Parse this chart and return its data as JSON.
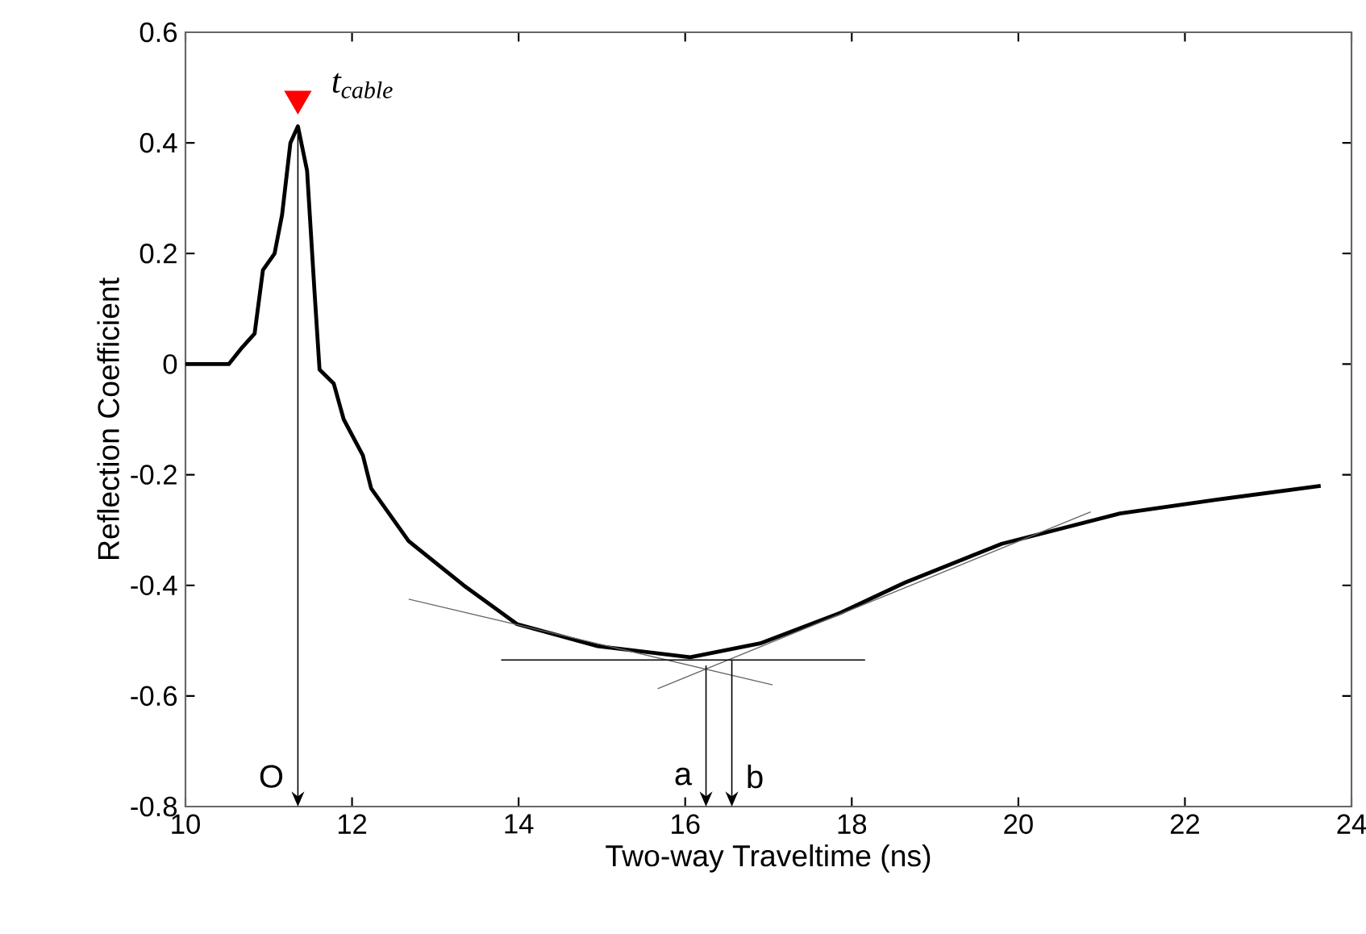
{
  "chart_data": {
    "type": "line",
    "xlabel": "Two-way Traveltime (ns)",
    "ylabel": "Reflection Coefficient",
    "xlim": [
      10,
      24
    ],
    "ylim": [
      -0.8,
      0.6
    ],
    "xticks": [
      10,
      12,
      14,
      16,
      18,
      20,
      22,
      24
    ],
    "yticks": [
      -0.8,
      -0.6,
      -0.4,
      -0.2,
      0,
      0.2,
      0.4,
      0.6
    ],
    "grid": false,
    "series": [
      {
        "color": "#000000",
        "x": [
          10.0,
          10.52,
          10.68,
          10.83,
          10.93,
          11.07,
          11.16,
          11.26,
          11.35,
          11.46,
          11.55,
          11.61,
          11.78,
          11.9,
          12.13,
          12.23,
          12.68,
          13.34,
          13.98,
          14.95,
          16.06,
          16.9,
          17.86,
          18.64,
          19.8,
          21.22,
          22.39,
          23.63
        ],
        "values": [
          0,
          0,
          0.03,
          0.055,
          0.17,
          0.2,
          0.27,
          0.4,
          0.43,
          0.35,
          0.13,
          -0.01,
          -0.035,
          -0.1,
          -0.165,
          -0.225,
          -0.32,
          -0.4,
          -0.47,
          -0.51,
          -0.53,
          -0.505,
          -0.45,
          -0.395,
          -0.325,
          -0.27,
          -0.245,
          -0.22
        ]
      },
      {
        "color": "#666666",
        "x": [
          12.68,
          17.05
        ],
        "values": [
          -0.425,
          -0.58
        ]
      },
      {
        "color": "#666666",
        "x": [
          15.67,
          20.87
        ],
        "values": [
          -0.587,
          -0.267
        ]
      },
      {
        "color": "#000000",
        "x": [
          13.79,
          18.16
        ],
        "values": [
          -0.535,
          -0.535
        ]
      },
      {
        "type": "scatter",
        "name": "t$_{cable}$",
        "color": "#ff0000",
        "marker": "triangle",
        "x": [
          11.35
        ],
        "values": [
          0.48
        ]
      }
    ],
    "annotations": [
      {
        "text": "O",
        "x": 11.35,
        "y": 0.43
      },
      {
        "text": "a",
        "x": 16.25,
        "y": -0.545
      },
      {
        "text": "b",
        "x": 16.56,
        "y": -0.535
      }
    ]
  }
}
